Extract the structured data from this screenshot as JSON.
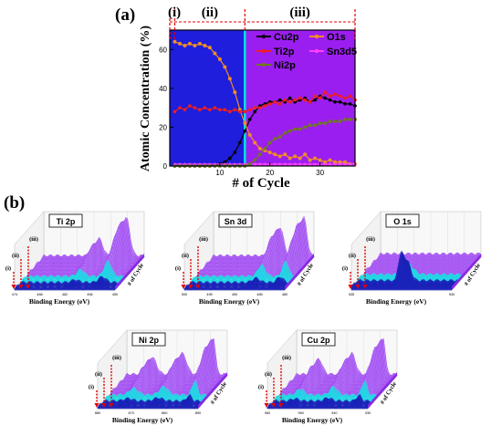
{
  "panel_a_label": "(a)",
  "panel_b_label": "(b)",
  "colors": {
    "region_i": "#1e1edc",
    "region_ii": "#1e1edc",
    "region_iii": "#9b1ef0",
    "boundary": "#00e5e5",
    "region_marker": "#e00000",
    "Cu2p": "#000000",
    "O1s": "#f08c28",
    "Ti2p": "#f01e1e",
    "Sn3d5": "#ff40ff",
    "Ni2p": "#6e7a1e"
  },
  "chart_data": [
    {
      "type": "line",
      "xlabel": "# of Cycle",
      "ylabel": "Atomic Concentration (%)",
      "xlim": [
        0,
        37
      ],
      "ylim": [
        0,
        70
      ],
      "xticks": [
        10,
        20,
        30
      ],
      "yticks": [
        0,
        20,
        40,
        60
      ],
      "grid": false,
      "legend_position": "top-right",
      "regions": [
        {
          "label": "(i)",
          "start": 0,
          "end": 1
        },
        {
          "label": "(ii)",
          "start": 1,
          "end": 15
        },
        {
          "label": "(iii)",
          "start": 15,
          "end": 37
        }
      ],
      "x": [
        1,
        2,
        3,
        4,
        5,
        6,
        7,
        8,
        9,
        10,
        11,
        12,
        13,
        14,
        15,
        16,
        17,
        18,
        19,
        20,
        21,
        22,
        23,
        24,
        25,
        26,
        27,
        28,
        29,
        30,
        31,
        32,
        33,
        34,
        35,
        36,
        37
      ],
      "series": [
        {
          "name": "Cu2p",
          "values": [
            0,
            0,
            0,
            0,
            0,
            0,
            0,
            0,
            0.5,
            1,
            2,
            4,
            7,
            12,
            18,
            24,
            28,
            31,
            32,
            33,
            33,
            34,
            33,
            35,
            33,
            34,
            35,
            33,
            34,
            36,
            35,
            34,
            33,
            33,
            32,
            32,
            31
          ]
        },
        {
          "name": "O1s",
          "values": [
            64,
            63,
            62,
            63,
            62,
            63,
            62,
            61,
            58,
            55,
            51,
            45,
            38,
            29,
            22,
            16,
            12,
            9,
            8,
            7,
            6,
            5,
            6,
            4,
            5,
            4,
            6,
            3,
            4,
            3,
            2,
            3,
            2,
            2,
            2,
            1,
            1
          ]
        },
        {
          "name": "Ti2p",
          "values": [
            28,
            30,
            29,
            31,
            30,
            29,
            30,
            29,
            30,
            29,
            29,
            28,
            29,
            28,
            28,
            29,
            30,
            30,
            31,
            32,
            33,
            32,
            34,
            33,
            34,
            35,
            34,
            33,
            36,
            35,
            38,
            36,
            37,
            36,
            35,
            36,
            34
          ]
        },
        {
          "name": "Sn3d5",
          "values": [
            1,
            1,
            1,
            1,
            1,
            1,
            1,
            1,
            1,
            1,
            1,
            1,
            1,
            1,
            1,
            1,
            1,
            1,
            1,
            1,
            1,
            1,
            1,
            1,
            1,
            1,
            1,
            1,
            1,
            1,
            1,
            1,
            1,
            1,
            1,
            1,
            1
          ]
        },
        {
          "name": "Ni2p",
          "values": [
            0,
            0,
            0,
            0,
            0,
            0,
            0,
            0,
            0,
            0,
            0,
            0,
            0,
            0,
            0,
            1,
            3,
            6,
            9,
            12,
            14,
            15,
            17,
            18,
            19,
            19,
            20,
            21,
            21,
            22,
            22,
            23,
            23,
            23,
            24,
            24,
            24
          ]
        }
      ]
    }
  ],
  "waterfalls": [
    {
      "id": "ti2p",
      "title": "Ti 2p",
      "xlabel": "Binding Energy (eV)",
      "zlabel": "# of Cycle",
      "peaks": [
        [
          0.82,
          1.0,
          0.05
        ],
        [
          0.55,
          0.45,
          0.05
        ]
      ],
      "ticks": [
        "474",
        "468",
        "462",
        "456",
        "450"
      ]
    },
    {
      "id": "sn3d",
      "title": "Sn 3d",
      "xlabel": "Binding Energy (eV)",
      "zlabel": "# of Cycle",
      "peaks": [
        [
          0.66,
          0.75,
          0.05
        ],
        [
          0.9,
          1.0,
          0.04
        ]
      ],
      "ticks": [
        "500",
        "495",
        "490",
        "485",
        "480"
      ]
    },
    {
      "id": "o1s",
      "title": "O 1s",
      "xlabel": "Binding Energy (eV)",
      "zlabel": "# of Cycle",
      "peaks": [
        [
          0.5,
          0.05,
          0.06
        ]
      ],
      "ticks": [
        "535",
        "530"
      ]
    },
    {
      "id": "ni2p",
      "title": "Ni 2p",
      "xlabel": "Binding Energy (eV)",
      "zlabel": "# of Cycle",
      "peaks": [
        [
          0.55,
          0.55,
          0.06
        ],
        [
          0.86,
          1.0,
          0.03
        ],
        [
          0.25,
          0.45,
          0.06
        ]
      ],
      "ticks": [
        "880",
        "870",
        "860",
        "850"
      ]
    },
    {
      "id": "cu2p",
      "title": "Cu 2p",
      "xlabel": "Binding Energy (eV)",
      "zlabel": "# of Cycle",
      "peaks": [
        [
          0.55,
          0.55,
          0.05
        ],
        [
          0.86,
          1.0,
          0.03
        ],
        [
          0.22,
          0.4,
          0.05
        ]
      ],
      "ticks": [
        "960",
        "950",
        "940",
        "930"
      ]
    }
  ],
  "waterfall_region_labels": [
    "(iii)",
    "(ii)",
    "(i)"
  ]
}
